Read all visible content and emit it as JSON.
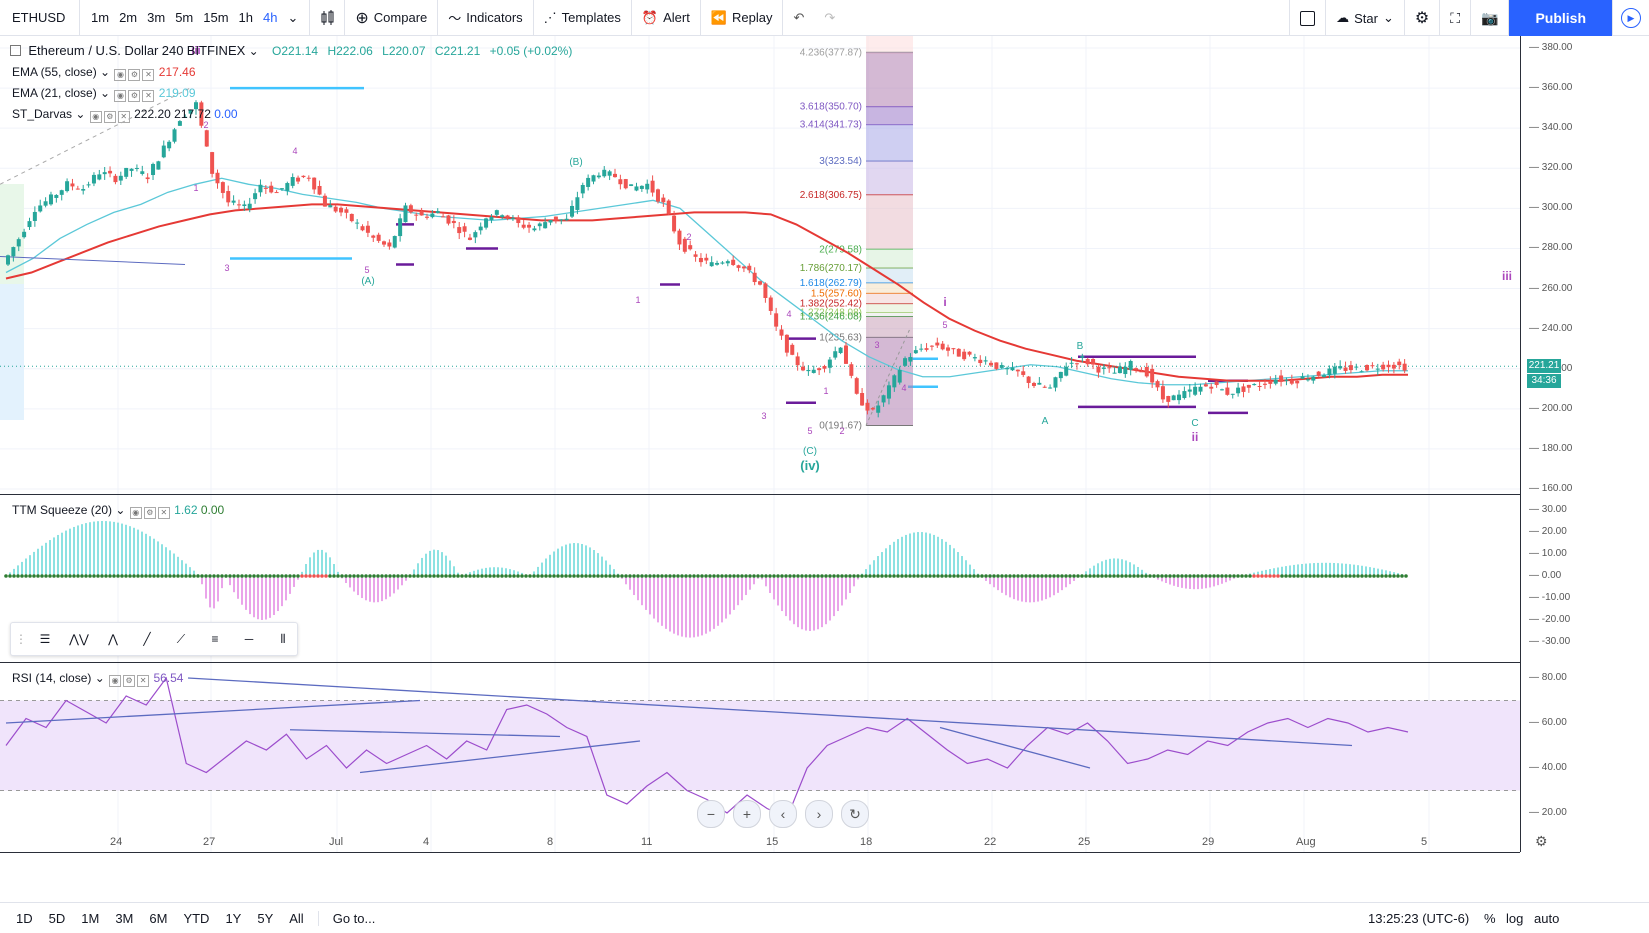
{
  "toolbar": {
    "symbol": "ETHUSD",
    "intervals": [
      "1m",
      "2m",
      "3m",
      "5m",
      "15m",
      "1h",
      "4h"
    ],
    "active_interval": "4h",
    "compare": "Compare",
    "indicators": "Indicators",
    "templates": "Templates",
    "alert": "Alert",
    "replay": "Replay",
    "star": "Star",
    "publish": "Publish"
  },
  "legend": {
    "title": "Ethereum / U.S. Dollar",
    "interval": "240",
    "exchange": "BITFINEX",
    "o": "O221.14",
    "h": "H222.06",
    "l": "L220.07",
    "c": "C221.21",
    "chg": "+0.05 (+0.02%)",
    "ema55": {
      "label": "EMA (55, close)",
      "value": "217.46"
    },
    "ema21": {
      "label": "EMA (21, close)",
      "value": "219.09"
    },
    "darvas": {
      "label": "ST_Darvas",
      "v1": "222.20",
      "v2": "217.72",
      "v3": "0.00"
    }
  },
  "price_axis": {
    "ticks": [
      "380.00",
      "360.00",
      "340.00",
      "320.00",
      "300.00",
      "280.00",
      "260.00",
      "240.00",
      "220.00",
      "200.00",
      "180.00",
      "160.00"
    ],
    "last_price": "221.21",
    "countdown": "34:36"
  },
  "fib": [
    "4.236(377.87)",
    "3.618(350.70)",
    "3.414(341.73)",
    "3(323.54)",
    "2.618(306.75)",
    "2(279.58)",
    "1.786(270.17)",
    "1.618(262.79)",
    "1.5(257.60)",
    "1.382(252.42)",
    "1.272(248.08)",
    "1.236(246.08)",
    "1(235.63)",
    "0(191.67)"
  ],
  "waves": {
    "iii_top": "iii",
    "iv": "(iv)",
    "C": "(C)",
    "A": "(A)",
    "B": "(B)",
    "i": "i",
    "ii": "ii",
    "iii": "iii",
    "a": "A",
    "b": "B",
    "c": "C"
  },
  "ttm": {
    "label": "TTM Squeeze (20)",
    "v1": "1.62",
    "v2": "0.00",
    "ticks": [
      "30.00",
      "20.00",
      "10.00",
      "0.00",
      "-10.00",
      "-20.00",
      "-30.00"
    ]
  },
  "rsi": {
    "label": "RSI (14, close)",
    "value": "56.54",
    "ticks": [
      "80.00",
      "60.00",
      "40.00",
      "20.00"
    ]
  },
  "x_axis": [
    "24",
    "27",
    "Jul",
    "4",
    "8",
    "11",
    "15",
    "18",
    "22",
    "25",
    "29",
    "Aug",
    "5"
  ],
  "bottom": {
    "ranges": [
      "1D",
      "5D",
      "1M",
      "3M",
      "6M",
      "YTD",
      "1Y",
      "5Y",
      "All"
    ],
    "goto": "Go to...",
    "clock": "13:25:23 (UTC-6)",
    "pct": "%",
    "log": "log",
    "auto": "auto"
  },
  "colors": {
    "up": "#26a69a",
    "down": "#ef5350",
    "ema55": "#e53935",
    "ema21": "#5bc8d8",
    "accent": "#2962ff",
    "rsi_fill": "#f0e4fb"
  },
  "chart_data": {
    "type": "candlestick",
    "symbol": "ETHUSD",
    "interval": "240",
    "ylim": [
      160,
      380
    ],
    "path": [
      272,
      285,
      300,
      305,
      312,
      310,
      318,
      315,
      320,
      316,
      330,
      345,
      352,
      318,
      303,
      300,
      312,
      308,
      314,
      316,
      302,
      298,
      292,
      285,
      280,
      300,
      296,
      298,
      292,
      285,
      296,
      298,
      292,
      290,
      295,
      294,
      312,
      318,
      316,
      310,
      312,
      302,
      283,
      275,
      272,
      275,
      270,
      262,
      240,
      225,
      218,
      222,
      232,
      206,
      198,
      210,
      225,
      230,
      232,
      228,
      226,
      224,
      220,
      218,
      212,
      210,
      222,
      225,
      220,
      218,
      222,
      218,
      205,
      206,
      210,
      212,
      208,
      210,
      212,
      215,
      214,
      216,
      218,
      220,
      220,
      221,
      222,
      221
    ],
    "ema55": [
      265,
      268,
      273,
      278,
      283,
      287,
      291,
      294,
      297,
      299,
      300,
      301,
      302,
      302,
      301,
      300,
      299,
      298,
      297,
      296,
      295,
      294,
      294,
      294,
      295,
      296,
      297,
      298,
      298,
      298,
      297,
      292,
      285,
      278,
      270,
      262,
      253,
      245,
      239,
      234,
      230,
      227,
      224,
      222,
      220,
      218,
      216,
      215,
      214,
      214,
      214,
      215,
      216,
      216,
      217,
      217
    ],
    "ema21": [
      268,
      275,
      285,
      292,
      298,
      302,
      308,
      312,
      315,
      312,
      310,
      307,
      305,
      303,
      300,
      298,
      296,
      295,
      294,
      295,
      296,
      298,
      300,
      302,
      304,
      300,
      288,
      276,
      264,
      254,
      244,
      234,
      226,
      220,
      216,
      216,
      218,
      220,
      222,
      221,
      218,
      215,
      213,
      212,
      212,
      213,
      214,
      215,
      216,
      217,
      218,
      219,
      219
    ]
  }
}
